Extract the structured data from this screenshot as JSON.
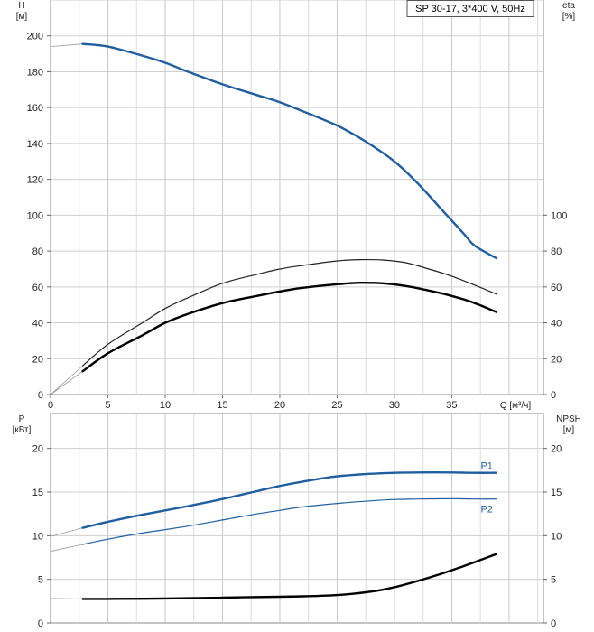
{
  "chart_data": [
    {
      "type": "line",
      "id": "upper",
      "legend": "SP 30-17, 3*400 V, 50Hz",
      "xlabel": "Q [м³/ч]",
      "x_ticks": [
        0,
        5,
        10,
        15,
        20,
        25,
        30,
        35
      ],
      "xlim": [
        0,
        43
      ],
      "grid": true,
      "left_axis": {
        "label_top": "H",
        "label_unit": "[м]",
        "ylim": [
          0,
          220
        ],
        "ticks": [
          0,
          20,
          40,
          60,
          80,
          100,
          120,
          140,
          160,
          180,
          200
        ]
      },
      "right_axis": {
        "label_top": "eta",
        "label_unit": "[%]",
        "ylim": [
          0,
          220
        ],
        "ticks": [
          0,
          20,
          40,
          60,
          80,
          100
        ]
      },
      "series": [
        {
          "axis": "left",
          "color": "#1f5fa0",
          "width": 2.4,
          "thin_segment": [
            [
              0,
              194
            ],
            [
              2.8,
              195.5
            ]
          ],
          "points": [
            [
              2.8,
              195.5
            ],
            [
              5,
              194
            ],
            [
              8,
              189
            ],
            [
              10,
              185
            ],
            [
              12,
              180
            ],
            [
              15,
              173
            ],
            [
              18,
              167
            ],
            [
              20,
              163
            ],
            [
              22,
              158
            ],
            [
              25,
              150
            ],
            [
              27,
              143
            ],
            [
              28,
              139
            ],
            [
              30,
              130
            ],
            [
              32,
              118
            ],
            [
              34,
              104
            ],
            [
              36,
              90
            ],
            [
              37,
              83
            ],
            [
              38.9,
              76
            ]
          ]
        },
        {
          "axis": "right",
          "color": "#222222",
          "width": 1.2,
          "thin_segment": [
            [
              0,
              0
            ],
            [
              2.8,
              16
            ]
          ],
          "points": [
            [
              2.8,
              16
            ],
            [
              5,
              28
            ],
            [
              8,
              40
            ],
            [
              10,
              48
            ],
            [
              12,
              54
            ],
            [
              15,
              62
            ],
            [
              18,
              67
            ],
            [
              20,
              70
            ],
            [
              22,
              72
            ],
            [
              25,
              74.5
            ],
            [
              27,
              75.2
            ],
            [
              29,
              75
            ],
            [
              31,
              73.5
            ],
            [
              33,
              70
            ],
            [
              35,
              66
            ],
            [
              37,
              61
            ],
            [
              38.9,
              56
            ]
          ]
        },
        {
          "axis": "right",
          "color": "#000000",
          "width": 2.4,
          "thin_segment": [
            [
              0,
              0
            ],
            [
              2.8,
              13
            ]
          ],
          "points": [
            [
              2.8,
              13
            ],
            [
              5,
              23
            ],
            [
              8,
              33
            ],
            [
              10,
              40
            ],
            [
              12,
              45
            ],
            [
              15,
              51
            ],
            [
              18,
              55
            ],
            [
              20,
              57.5
            ],
            [
              22,
              59.5
            ],
            [
              25,
              61.5
            ],
            [
              27,
              62.3
            ],
            [
              29,
              62
            ],
            [
              31,
              60.5
            ],
            [
              33,
              58
            ],
            [
              35,
              55
            ],
            [
              37,
              51
            ],
            [
              38.9,
              46
            ]
          ]
        }
      ]
    },
    {
      "type": "line",
      "id": "lower",
      "grid": true,
      "xlim": [
        0,
        43
      ],
      "left_axis": {
        "label_top": "P",
        "label_unit": "[кВт]",
        "ylim": [
          0,
          24
        ],
        "ticks": [
          0,
          5,
          10,
          15,
          20
        ]
      },
      "right_axis": {
        "label_top": "NPSH",
        "label_unit": "[м]",
        "ylim": [
          0,
          24
        ],
        "ticks": [
          0,
          5,
          10,
          15,
          20
        ]
      },
      "series": [
        {
          "name": "P1",
          "axis": "left",
          "color": "#1f5fa0",
          "width": 2.4,
          "thin_segment": [
            [
              0,
              9.9
            ],
            [
              2.8,
              10.9
            ]
          ],
          "points": [
            [
              2.8,
              10.9
            ],
            [
              5,
              11.6
            ],
            [
              8,
              12.4
            ],
            [
              10,
              12.9
            ],
            [
              12,
              13.4
            ],
            [
              15,
              14.2
            ],
            [
              18,
              15.1
            ],
            [
              20,
              15.7
            ],
            [
              22,
              16.2
            ],
            [
              25,
              16.8
            ],
            [
              28,
              17.1
            ],
            [
              30,
              17.2
            ],
            [
              32,
              17.25
            ],
            [
              35,
              17.25
            ],
            [
              37,
              17.2
            ],
            [
              38.9,
              17.2
            ]
          ]
        },
        {
          "name": "P2",
          "axis": "left",
          "color": "#1f5fa0",
          "width": 1.2,
          "thin_segment": [
            [
              0,
              8.2
            ],
            [
              2.8,
              9.0
            ]
          ],
          "points": [
            [
              2.8,
              9.0
            ],
            [
              5,
              9.6
            ],
            [
              8,
              10.3
            ],
            [
              10,
              10.7
            ],
            [
              12,
              11.1
            ],
            [
              15,
              11.8
            ],
            [
              18,
              12.5
            ],
            [
              20,
              12.9
            ],
            [
              22,
              13.3
            ],
            [
              25,
              13.7
            ],
            [
              28,
              14.0
            ],
            [
              30,
              14.15
            ],
            [
              32,
              14.2
            ],
            [
              35,
              14.25
            ],
            [
              37,
              14.2
            ],
            [
              38.9,
              14.2
            ]
          ]
        },
        {
          "axis": "right",
          "color": "#000000",
          "width": 2.4,
          "thin_segment": [
            [
              0,
              2.8
            ],
            [
              2.8,
              2.75
            ]
          ],
          "points": [
            [
              2.8,
              2.75
            ],
            [
              5,
              2.75
            ],
            [
              10,
              2.8
            ],
            [
              15,
              2.9
            ],
            [
              20,
              3.0
            ],
            [
              22,
              3.05
            ],
            [
              25,
              3.2
            ],
            [
              28,
              3.6
            ],
            [
              30,
              4.1
            ],
            [
              32,
              4.8
            ],
            [
              34,
              5.6
            ],
            [
              36,
              6.5
            ],
            [
              38.9,
              7.9
            ]
          ]
        }
      ]
    }
  ]
}
